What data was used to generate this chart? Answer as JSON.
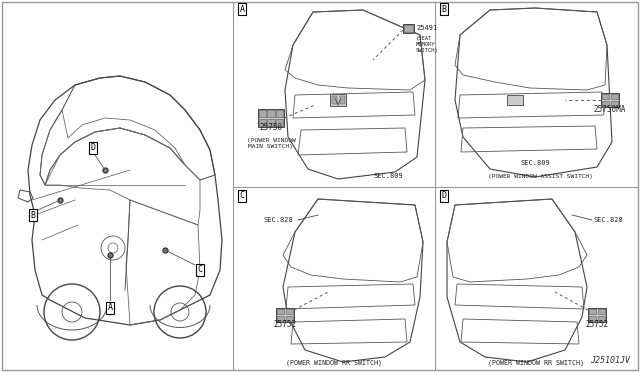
{
  "bg_color": "#ffffff",
  "border_color": "#888888",
  "title_code": "J25101JV",
  "sections": {
    "A": {
      "part_number_main": "25750",
      "label_main": "(POWER WINDOW\nMAIN SWITCH)",
      "part_number_upper": "25491",
      "label_upper": "(SEAT\nMEMORY\nSWITCH)",
      "sec_label": "SEC.809"
    },
    "B": {
      "part_number": "25750MA",
      "label": "(POWER WINDOW ASSIST SWITCH)",
      "sec_label": "SEC.809"
    },
    "C": {
      "part_number": "25752",
      "label": "(POWER WINDOW RR SWITCH)",
      "sec_label": "SEC.828"
    },
    "D": {
      "part_number": "25752",
      "label": "(POWER WINDOW RR SWITCH)",
      "sec_label": "SEC.828"
    }
  }
}
